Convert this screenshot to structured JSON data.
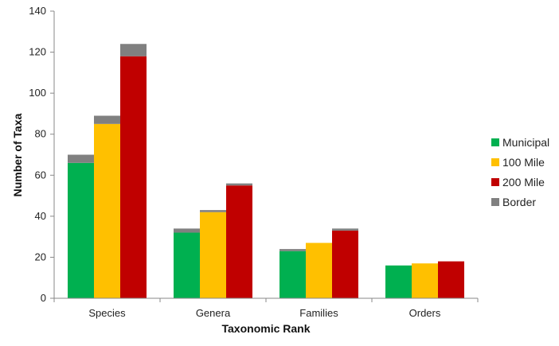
{
  "chart_data": {
    "type": "bar",
    "stacked_overlay": true,
    "categories": [
      "Species",
      "Genera",
      "Families",
      "Orders"
    ],
    "xlabel": "Taxonomic Rank",
    "ylabel": "Number of Taxa",
    "ylim": [
      0,
      140
    ],
    "yticks": [
      0,
      20,
      40,
      60,
      80,
      100,
      120,
      140
    ],
    "grid": false,
    "legend_position": "right",
    "groups": [
      {
        "name": "Municipal",
        "color": "#00b050",
        "values": [
          66,
          32,
          23,
          16
        ],
        "border": [
          4,
          2,
          1,
          0
        ]
      },
      {
        "name": "100 Mile",
        "color": "#ffc000",
        "values": [
          85,
          42,
          27,
          17
        ],
        "border": [
          4,
          1,
          0,
          0
        ]
      },
      {
        "name": "200 Mile",
        "color": "#c00000",
        "values": [
          118,
          55,
          33,
          18
        ],
        "border": [
          6,
          1,
          1,
          0
        ]
      }
    ],
    "border_series": {
      "name": "Border",
      "color": "#808080"
    }
  }
}
